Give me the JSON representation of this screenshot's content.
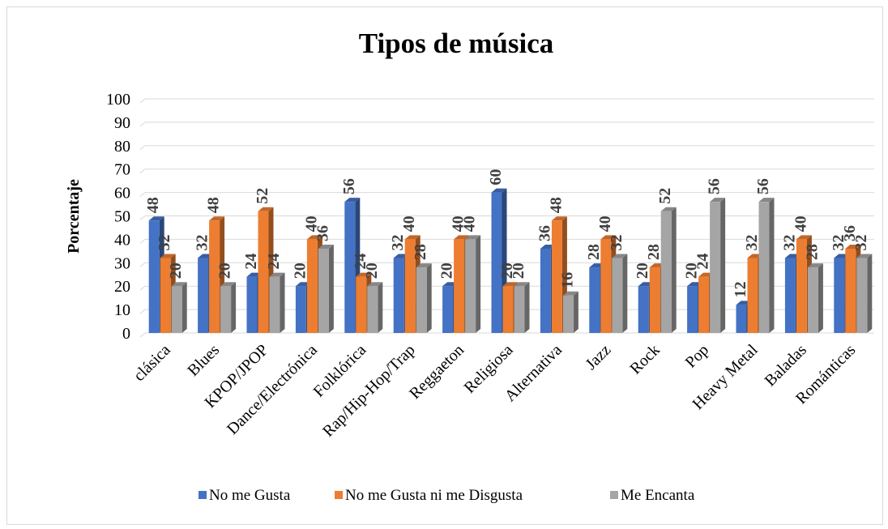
{
  "chart_data": {
    "type": "bar",
    "title": "Tipos de música",
    "ylabel": "Porcentaje",
    "xlabel": "",
    "ylim": [
      0,
      100
    ],
    "yticks": [
      0,
      10,
      20,
      30,
      40,
      50,
      60,
      70,
      80,
      90,
      100
    ],
    "grid": true,
    "legend_position": "bottom",
    "categories": [
      "clásica",
      "Blues",
      "KPOP/JPOP",
      "Dance/Electrónica",
      "Folklórica",
      "Rap/Hip-Hop/Trap",
      "Reggaeton",
      "Religiosa",
      "Alternativa",
      "Jazz",
      "Rock",
      "Pop",
      "Heavy Metal",
      "Baladas",
      "Románticas"
    ],
    "series": [
      {
        "name": "No me Gusta",
        "color": "#4472c4",
        "values": [
          48,
          32,
          24,
          20,
          56,
          32,
          20,
          60,
          36,
          28,
          20,
          20,
          12,
          32,
          32
        ]
      },
      {
        "name": "No me Gusta ni me Disgusta",
        "color": "#ed7d31",
        "values": [
          32,
          48,
          52,
          40,
          24,
          40,
          40,
          20,
          48,
          40,
          28,
          24,
          32,
          40,
          36
        ]
      },
      {
        "name": "Me Encanta",
        "color": "#a5a5a5",
        "values": [
          20,
          20,
          24,
          36,
          20,
          28,
          40,
          20,
          16,
          32,
          52,
          56,
          56,
          28,
          32
        ]
      }
    ]
  }
}
